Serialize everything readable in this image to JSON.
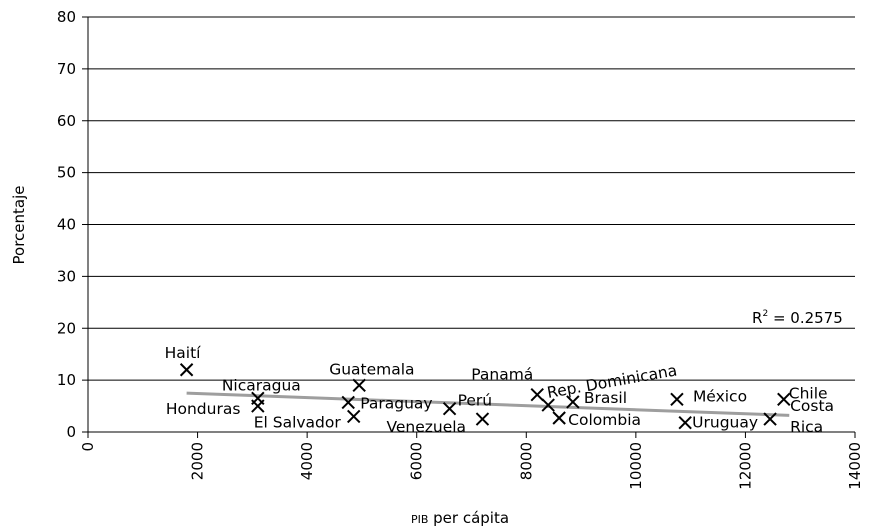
{
  "chart_data": {
    "type": "scatter",
    "xlabel_prefix": "PIB",
    "xlabel_rest": " per cápita",
    "ylabel": "Porcentaje",
    "xlim": [
      0,
      14000
    ],
    "ylim": [
      0,
      80
    ],
    "x_ticks": [
      "0",
      "2000",
      "4000",
      "6000",
      "8000",
      "10000",
      "12000",
      "14000"
    ],
    "y_ticks": [
      "0",
      "10",
      "20",
      "30",
      "40",
      "50",
      "60",
      "70",
      "80"
    ],
    "grid": "horizontal",
    "marker": "x",
    "points": [
      {
        "label": "Haití",
        "x": 1800,
        "y": 12
      },
      {
        "label": "Nicaragua",
        "x": 3100,
        "y": 6.5
      },
      {
        "label": "Honduras",
        "x": 3100,
        "y": 5
      },
      {
        "label": "Guatemala",
        "x": 4950,
        "y": 9
      },
      {
        "label": "Paraguay",
        "x": 4750,
        "y": 5.7
      },
      {
        "label": "El Salvador",
        "x": 4850,
        "y": 3
      },
      {
        "label": "Perú",
        "x": 6600,
        "y": 4.5
      },
      {
        "label": "Venezuela",
        "x": 7200,
        "y": 2.5
      },
      {
        "label": "Panamá",
        "x": 8200,
        "y": 7.2
      },
      {
        "label": "Rep. Dominicana",
        "x": 8400,
        "y": 5.2
      },
      {
        "label": "Brasil",
        "x": 8850,
        "y": 5.8
      },
      {
        "label": "Colombia",
        "x": 8600,
        "y": 2.7
      },
      {
        "label": "México",
        "x": 10750,
        "y": 6.3
      },
      {
        "label": "Uruguay",
        "x": 10900,
        "y": 1.8
      },
      {
        "label": "Chile",
        "x": 12700,
        "y": 6.3
      },
      {
        "label": "Costa Rica",
        "label_lines": [
          "Costa",
          "Rica"
        ],
        "x": 12450,
        "y": 2.5
      }
    ],
    "trendline": {
      "x": [
        1800,
        12800
      ],
      "y": [
        7.5,
        3.2
      ],
      "color": "#9e9e9e"
    },
    "r2_prefix": "R",
    "r2_sup": "2",
    "r2_value": " = 0.2575"
  }
}
